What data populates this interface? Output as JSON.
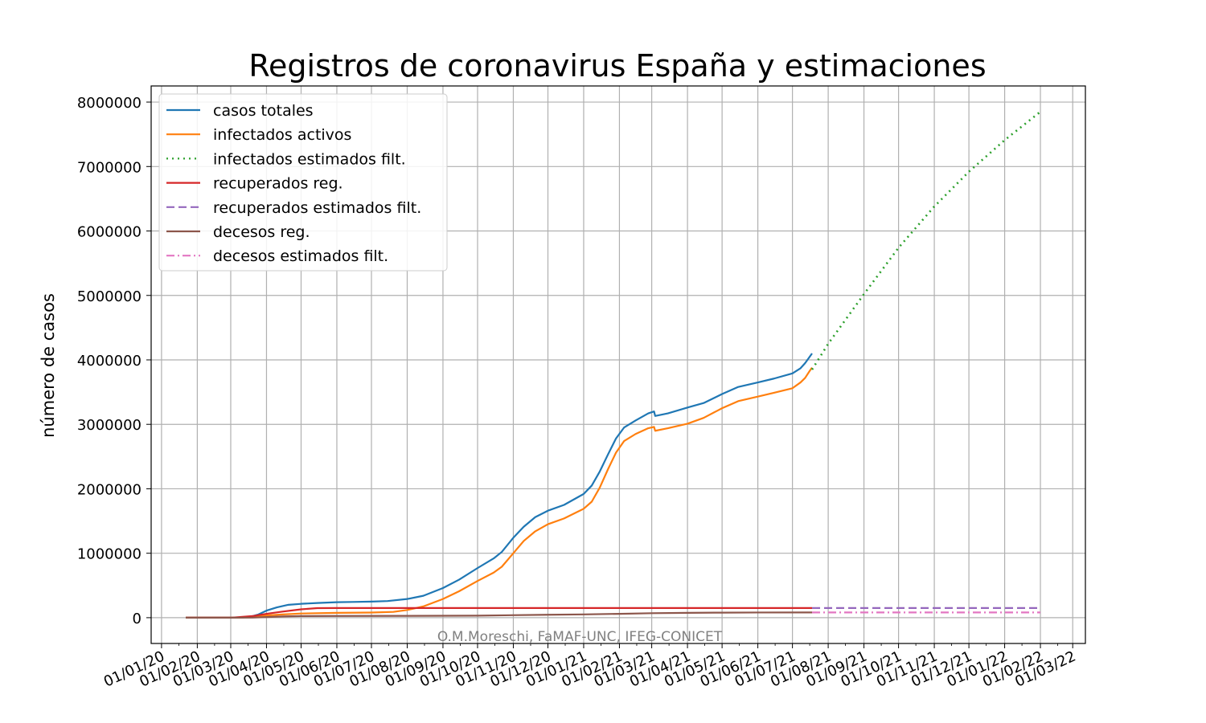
{
  "chart_data": {
    "type": "line",
    "title": "Registros de coronavirus España y estimaciones",
    "xlabel": "",
    "ylabel": "número de casos",
    "watermark": "O.M.Moreschi, FaMAF-UNC, IFEG-CONICET",
    "grid": true,
    "legend_position": "top-left",
    "x_type": "date",
    "xlim": [
      "2019-12-23",
      "2022-03-12"
    ],
    "ylim": [
      -400000,
      8250000
    ],
    "x_ticks": [
      {
        "date": "2020-01-01",
        "label": "01/01/20"
      },
      {
        "date": "2020-02-01",
        "label": "01/02/20"
      },
      {
        "date": "2020-03-01",
        "label": "01/03/20"
      },
      {
        "date": "2020-04-01",
        "label": "01/04/20"
      },
      {
        "date": "2020-05-01",
        "label": "01/05/20"
      },
      {
        "date": "2020-06-01",
        "label": "01/06/20"
      },
      {
        "date": "2020-07-01",
        "label": "01/07/20"
      },
      {
        "date": "2020-08-01",
        "label": "01/08/20"
      },
      {
        "date": "2020-09-01",
        "label": "01/09/20"
      },
      {
        "date": "2020-10-01",
        "label": "01/10/20"
      },
      {
        "date": "2020-11-01",
        "label": "01/11/20"
      },
      {
        "date": "2020-12-01",
        "label": "01/12/20"
      },
      {
        "date": "2021-01-01",
        "label": "01/01/21"
      },
      {
        "date": "2021-02-01",
        "label": "01/02/21"
      },
      {
        "date": "2021-03-01",
        "label": "01/03/21"
      },
      {
        "date": "2021-04-01",
        "label": "01/04/21"
      },
      {
        "date": "2021-05-01",
        "label": "01/05/21"
      },
      {
        "date": "2021-06-01",
        "label": "01/06/21"
      },
      {
        "date": "2021-07-01",
        "label": "01/07/21"
      },
      {
        "date": "2021-08-01",
        "label": "01/08/21"
      },
      {
        "date": "2021-09-01",
        "label": "01/09/21"
      },
      {
        "date": "2021-10-01",
        "label": "01/10/21"
      },
      {
        "date": "2021-11-01",
        "label": "01/11/21"
      },
      {
        "date": "2021-12-01",
        "label": "01/12/21"
      },
      {
        "date": "2022-01-01",
        "label": "01/01/22"
      },
      {
        "date": "2022-02-01",
        "label": "01/02/22"
      },
      {
        "date": "2022-03-01",
        "label": "01/03/22"
      }
    ],
    "y_ticks": [
      {
        "value": 0,
        "label": "0"
      },
      {
        "value": 1000000,
        "label": "1000000"
      },
      {
        "value": 2000000,
        "label": "2000000"
      },
      {
        "value": 3000000,
        "label": "3000000"
      },
      {
        "value": 4000000,
        "label": "4000000"
      },
      {
        "value": 5000000,
        "label": "5000000"
      },
      {
        "value": 6000000,
        "label": "6000000"
      },
      {
        "value": 7000000,
        "label": "7000000"
      },
      {
        "value": 8000000,
        "label": "8000000"
      }
    ],
    "series": [
      {
        "name": "casos totales",
        "color": "#1f77b4",
        "line_style": "solid",
        "points": [
          [
            "2020-01-22",
            0
          ],
          [
            "2020-02-15",
            0
          ],
          [
            "2020-03-01",
            100
          ],
          [
            "2020-03-10",
            2000
          ],
          [
            "2020-03-15",
            8000
          ],
          [
            "2020-03-20",
            25000
          ],
          [
            "2020-03-25",
            50000
          ],
          [
            "2020-04-01",
            110000
          ],
          [
            "2020-04-10",
            160000
          ],
          [
            "2020-04-20",
            200000
          ],
          [
            "2020-05-01",
            215000
          ],
          [
            "2020-05-15",
            228000
          ],
          [
            "2020-06-01",
            240000
          ],
          [
            "2020-06-15",
            244000
          ],
          [
            "2020-07-01",
            250000
          ],
          [
            "2020-07-15",
            258000
          ],
          [
            "2020-08-01",
            290000
          ],
          [
            "2020-08-15",
            340000
          ],
          [
            "2020-09-01",
            460000
          ],
          [
            "2020-09-15",
            590000
          ],
          [
            "2020-10-01",
            770000
          ],
          [
            "2020-10-15",
            920000
          ],
          [
            "2020-10-22",
            1020000
          ],
          [
            "2020-11-01",
            1240000
          ],
          [
            "2020-11-10",
            1410000
          ],
          [
            "2020-11-20",
            1560000
          ],
          [
            "2020-12-01",
            1660000
          ],
          [
            "2020-12-15",
            1750000
          ],
          [
            "2021-01-01",
            1920000
          ],
          [
            "2021-01-08",
            2050000
          ],
          [
            "2021-01-15",
            2270000
          ],
          [
            "2021-01-22",
            2530000
          ],
          [
            "2021-01-29",
            2780000
          ],
          [
            "2021-02-05",
            2950000
          ],
          [
            "2021-02-15",
            3060000
          ],
          [
            "2021-02-26",
            3170000
          ],
          [
            "2021-03-03",
            3200000
          ],
          [
            "2021-03-04",
            3130000
          ],
          [
            "2021-03-15",
            3170000
          ],
          [
            "2021-04-01",
            3260000
          ],
          [
            "2021-04-15",
            3330000
          ],
          [
            "2021-05-01",
            3470000
          ],
          [
            "2021-05-15",
            3580000
          ],
          [
            "2021-06-01",
            3650000
          ],
          [
            "2021-06-15",
            3710000
          ],
          [
            "2021-07-01",
            3790000
          ],
          [
            "2021-07-08",
            3870000
          ],
          [
            "2021-07-12",
            3950000
          ],
          [
            "2021-07-16",
            4050000
          ],
          [
            "2021-07-18",
            4100000
          ]
        ]
      },
      {
        "name": "infectados activos",
        "color": "#ff7f0e",
        "line_style": "solid",
        "points": [
          [
            "2020-01-22",
            0
          ],
          [
            "2020-02-15",
            0
          ],
          [
            "2020-03-01",
            100
          ],
          [
            "2020-03-10",
            1800
          ],
          [
            "2020-03-20",
            15000
          ],
          [
            "2020-04-01",
            35000
          ],
          [
            "2020-04-15",
            50000
          ],
          [
            "2020-05-01",
            65000
          ],
          [
            "2020-06-01",
            75000
          ],
          [
            "2020-07-01",
            80000
          ],
          [
            "2020-07-20",
            90000
          ],
          [
            "2020-08-01",
            120000
          ],
          [
            "2020-08-15",
            175000
          ],
          [
            "2020-09-01",
            290000
          ],
          [
            "2020-09-15",
            410000
          ],
          [
            "2020-10-01",
            570000
          ],
          [
            "2020-10-15",
            700000
          ],
          [
            "2020-10-22",
            790000
          ],
          [
            "2020-11-01",
            1000000
          ],
          [
            "2020-11-10",
            1190000
          ],
          [
            "2020-11-20",
            1340000
          ],
          [
            "2020-12-01",
            1450000
          ],
          [
            "2020-12-15",
            1540000
          ],
          [
            "2021-01-01",
            1690000
          ],
          [
            "2021-01-08",
            1800000
          ],
          [
            "2021-01-15",
            2020000
          ],
          [
            "2021-01-22",
            2300000
          ],
          [
            "2021-01-29",
            2560000
          ],
          [
            "2021-02-05",
            2740000
          ],
          [
            "2021-02-15",
            2850000
          ],
          [
            "2021-02-26",
            2940000
          ],
          [
            "2021-03-03",
            2960000
          ],
          [
            "2021-03-04",
            2900000
          ],
          [
            "2021-03-15",
            2940000
          ],
          [
            "2021-04-01",
            3010000
          ],
          [
            "2021-04-15",
            3100000
          ],
          [
            "2021-05-01",
            3250000
          ],
          [
            "2021-05-15",
            3360000
          ],
          [
            "2021-06-01",
            3430000
          ],
          [
            "2021-06-15",
            3490000
          ],
          [
            "2021-07-01",
            3560000
          ],
          [
            "2021-07-08",
            3650000
          ],
          [
            "2021-07-12",
            3720000
          ],
          [
            "2021-07-16",
            3830000
          ],
          [
            "2021-07-18",
            3880000
          ]
        ]
      },
      {
        "name": "infectados estimados filt.",
        "color": "#2ca02c",
        "line_style": "dotted",
        "points": [
          [
            "2021-07-18",
            3850000
          ],
          [
            "2021-08-01",
            4250000
          ],
          [
            "2021-09-01",
            5020000
          ],
          [
            "2021-10-01",
            5740000
          ],
          [
            "2021-11-01",
            6380000
          ],
          [
            "2021-12-01",
            6920000
          ],
          [
            "2022-01-01",
            7410000
          ],
          [
            "2022-02-01",
            7850000
          ]
        ]
      },
      {
        "name": "recuperados reg.",
        "color": "#d62728",
        "line_style": "solid",
        "points": [
          [
            "2020-01-22",
            0
          ],
          [
            "2020-03-01",
            0
          ],
          [
            "2020-03-20",
            25000
          ],
          [
            "2020-04-01",
            60000
          ],
          [
            "2020-04-15",
            95000
          ],
          [
            "2020-05-01",
            130000
          ],
          [
            "2020-05-15",
            148000
          ],
          [
            "2020-06-01",
            150000
          ],
          [
            "2021-07-18",
            150000
          ]
        ]
      },
      {
        "name": "recuperados estimados filt.",
        "color": "#9467bd",
        "line_style": "dashed",
        "points": [
          [
            "2021-07-18",
            150000
          ],
          [
            "2022-02-01",
            150000
          ]
        ]
      },
      {
        "name": "decesos reg.",
        "color": "#8c564b",
        "line_style": "solid",
        "points": [
          [
            "2020-01-22",
            0
          ],
          [
            "2020-03-01",
            0
          ],
          [
            "2020-03-20",
            1000
          ],
          [
            "2020-04-01",
            10000
          ],
          [
            "2020-04-15",
            19000
          ],
          [
            "2020-05-01",
            25000
          ],
          [
            "2020-06-01",
            27000
          ],
          [
            "2020-08-01",
            28500
          ],
          [
            "2020-10-01",
            32000
          ],
          [
            "2020-12-01",
            46000
          ],
          [
            "2021-01-01",
            51000
          ],
          [
            "2021-02-01",
            60000
          ],
          [
            "2021-03-01",
            70000
          ],
          [
            "2021-04-01",
            75500
          ],
          [
            "2021-05-01",
            78500
          ],
          [
            "2021-06-01",
            80500
          ],
          [
            "2021-07-18",
            81000
          ]
        ]
      },
      {
        "name": "decesos estimados filt.",
        "color": "#e377c2",
        "line_style": "dashdot",
        "points": [
          [
            "2021-07-18",
            81000
          ],
          [
            "2022-02-01",
            81000
          ]
        ]
      }
    ]
  }
}
